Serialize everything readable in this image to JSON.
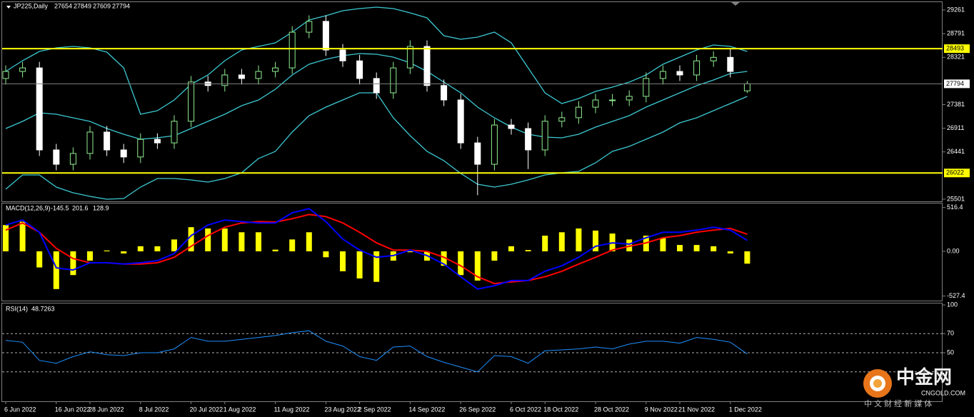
{
  "chart_data": [
    {
      "type": "candlestick",
      "title": "JP225,Daily",
      "categories": [
        "6 Jun 2022",
        null,
        null,
        "16 Jun 2022",
        null,
        "28 Jun 2022",
        null,
        null,
        "8 Jul 2022",
        null,
        null,
        "20 Jul 2022",
        null,
        "1 Aug 2022",
        null,
        null,
        "11 Aug 2022",
        null,
        null,
        "23 Aug 2022",
        null,
        "2 Sep 2022",
        null,
        null,
        "14 Sep 2022",
        null,
        null,
        "26 Sep 2022",
        null,
        null,
        "6 Oct 2022",
        null,
        "18 Oct 2022",
        null,
        null,
        "28 Oct 2022",
        null,
        null,
        "9 Nov 2022",
        null,
        "21 Nov 2022",
        null,
        null,
        "1 Dec 2022",
        null
      ],
      "candles": [
        [
          27900,
          28160,
          27780,
          28040
        ],
        [
          28040,
          28230,
          27920,
          28110
        ],
        [
          28110,
          28230,
          26360,
          26480
        ],
        [
          26480,
          26600,
          26075,
          26195
        ],
        [
          26195,
          26530,
          26075,
          26410
        ],
        [
          26410,
          26955,
          26290,
          26835
        ],
        [
          26835,
          26955,
          26360,
          26480
        ],
        [
          26480,
          26600,
          26220,
          26340
        ],
        [
          26340,
          26810,
          26220,
          26690
        ],
        [
          26690,
          26810,
          26500,
          26620
        ],
        [
          26620,
          27170,
          26500,
          27050
        ],
        [
          27050,
          27950,
          26930,
          27830
        ],
        [
          27830,
          27950,
          27640,
          27760
        ],
        [
          27760,
          28090,
          27640,
          27970
        ],
        [
          27970,
          28090,
          27780,
          27900
        ],
        [
          27900,
          28160,
          27780,
          28040
        ],
        [
          28040,
          28230,
          27920,
          28110
        ],
        [
          28110,
          28940,
          27990,
          28820
        ],
        [
          28820,
          29155,
          28700,
          29035
        ],
        [
          29035,
          29155,
          28346,
          28466
        ],
        [
          28466,
          28586,
          28130,
          28250
        ],
        [
          28250,
          28370,
          27780,
          27900
        ],
        [
          27900,
          28020,
          27495,
          27615
        ],
        [
          27615,
          28230,
          27495,
          28110
        ],
        [
          28110,
          28657,
          27990,
          28537
        ],
        [
          28537,
          28657,
          27640,
          27760
        ],
        [
          27760,
          27880,
          27353,
          27473
        ],
        [
          27473,
          27593,
          26500,
          26620
        ],
        [
          26620,
          26740,
          25580,
          26195
        ],
        [
          26195,
          27095,
          26075,
          26975
        ],
        [
          26975,
          27095,
          26785,
          26905
        ],
        [
          26905,
          27025,
          26100,
          26480
        ],
        [
          26480,
          27170,
          26360,
          27050
        ],
        [
          27050,
          27240,
          26930,
          27120
        ],
        [
          27120,
          27450,
          27000,
          27330
        ],
        [
          27330,
          27593,
          27210,
          27473
        ],
        [
          27473,
          27593,
          27353,
          27473
        ],
        [
          27473,
          27665,
          27353,
          27545
        ],
        [
          27545,
          28020,
          27425,
          27900
        ],
        [
          27900,
          28160,
          27780,
          28040
        ],
        [
          28040,
          28160,
          27850,
          27970
        ],
        [
          27970,
          28370,
          27850,
          28250
        ],
        [
          28250,
          28440,
          28130,
          28320
        ],
        [
          28320,
          28500,
          27920,
          28040
        ],
        [
          27654,
          27849,
          27609,
          27794
        ]
      ],
      "up_color": "#90ee90",
      "down_color": "#ffffff",
      "bands": {
        "color": "#3cc8d2",
        "upper": [
          28041,
          28254,
          28438,
          28509,
          28537,
          28509,
          28424,
          28112,
          27189,
          27260,
          27473,
          27785,
          27970,
          28254,
          28466,
          28537,
          28608,
          28821,
          29062,
          29147,
          29247,
          29289,
          29318,
          29289,
          29204,
          29105,
          28750,
          28679,
          28722,
          28821,
          28608,
          28112,
          27615,
          27402,
          27502,
          27643,
          27728,
          27828,
          27970,
          28183,
          28324,
          28466,
          28566,
          28537,
          28438
        ],
        "middle": [
          26905,
          27047,
          27218,
          27189,
          27118,
          27047,
          26905,
          26792,
          26693,
          26721,
          26764,
          26905,
          27047,
          27189,
          27360,
          27473,
          27686,
          27970,
          28183,
          28282,
          28353,
          28395,
          28381,
          28324,
          28211,
          28041,
          27828,
          27615,
          27331,
          27118,
          26934,
          26792,
          26735,
          26721,
          26792,
          26934,
          27047,
          27161,
          27331,
          27473,
          27615,
          27757,
          27870,
          27998,
          28041
        ],
        "lower": [
          25699,
          25983,
          25983,
          25742,
          25628,
          25557,
          25501,
          25515,
          25742,
          25912,
          25912,
          25884,
          25841,
          25912,
          26026,
          26309,
          26451,
          26834,
          27161,
          27331,
          27473,
          27615,
          27615,
          27118,
          26764,
          26451,
          26267,
          26012,
          25799,
          25742,
          25799,
          25884,
          25983,
          26026,
          26054,
          26224,
          26451,
          26551,
          26693,
          26834,
          27019,
          27118,
          27260,
          27402,
          27544
        ]
      },
      "levels": [
        28493,
        26022
      ],
      "level_color": "#ffff00",
      "last_price_color": "#808080",
      "ylim": [
        25472,
        29403
      ],
      "yticks": [
        29261,
        28791,
        28321,
        27381,
        26911,
        26441,
        25501
      ]
    },
    {
      "type": "macd",
      "title": "MACD(12,26,9)",
      "histogram": [
        310,
        350,
        -190,
        -445,
        -280,
        -110,
        10,
        -25,
        60,
        60,
        140,
        285,
        270,
        270,
        225,
        225,
        20,
        140,
        225,
        -70,
        -235,
        -320,
        -360,
        -110,
        -10,
        -110,
        -170,
        -280,
        -345,
        -110,
        60,
        15,
        185,
        225,
        270,
        245,
        210,
        140,
        185,
        160,
        75,
        75,
        60,
        -25,
        -145.5
      ],
      "histogram_color": "#ffff00",
      "signal": [
        250,
        335,
        225,
        35,
        -85,
        -135,
        -135,
        -150,
        -150,
        -135,
        -70,
        60,
        185,
        285,
        335,
        350,
        345,
        385,
        435,
        410,
        335,
        225,
        100,
        15,
        15,
        0,
        -70,
        -170,
        -300,
        -380,
        -360,
        -345,
        -300,
        -235,
        -150,
        -70,
        15,
        60,
        100,
        160,
        185,
        225,
        250,
        270,
        201.6
      ],
      "signal_color": "#ff0000",
      "macd": [
        310,
        370,
        225,
        -195,
        -220,
        -135,
        -135,
        -150,
        -135,
        -110,
        -25,
        185,
        310,
        370,
        350,
        335,
        335,
        455,
        505,
        350,
        145,
        15,
        -70,
        -50,
        15,
        -50,
        -150,
        -300,
        -445,
        -405,
        -345,
        -345,
        -235,
        -170,
        -70,
        60,
        100,
        85,
        160,
        225,
        225,
        250,
        285,
        250,
        128.9
      ],
      "macd_color": "#0000ff",
      "ylim": [
        -573,
        556
      ],
      "yticks": [
        516.4,
        {
          "value": 0,
          "label": "0.00"
        },
        -527.4
      ]
    },
    {
      "type": "rsi",
      "title": "RSI(14)",
      "values": [
        63,
        61,
        42,
        39,
        46,
        51,
        48,
        47,
        50,
        50,
        54,
        66,
        62,
        62,
        64,
        66,
        68,
        71,
        73,
        62,
        57,
        46,
        42,
        56,
        57,
        46,
        40,
        35,
        30,
        47,
        46,
        39,
        52,
        53,
        54,
        56,
        54,
        59,
        62,
        62,
        60,
        66,
        64,
        61,
        48.7263
      ],
      "color": "#1e90ff",
      "levels": [
        70,
        50,
        30
      ],
      "ylim": [
        0,
        100
      ],
      "yticks": [
        100,
        70,
        50
      ]
    }
  ],
  "watermark": {
    "title": "中金网",
    "site": "CNGOLD.COM",
    "tagline": "中 文 财 经 新 媒 体"
  }
}
